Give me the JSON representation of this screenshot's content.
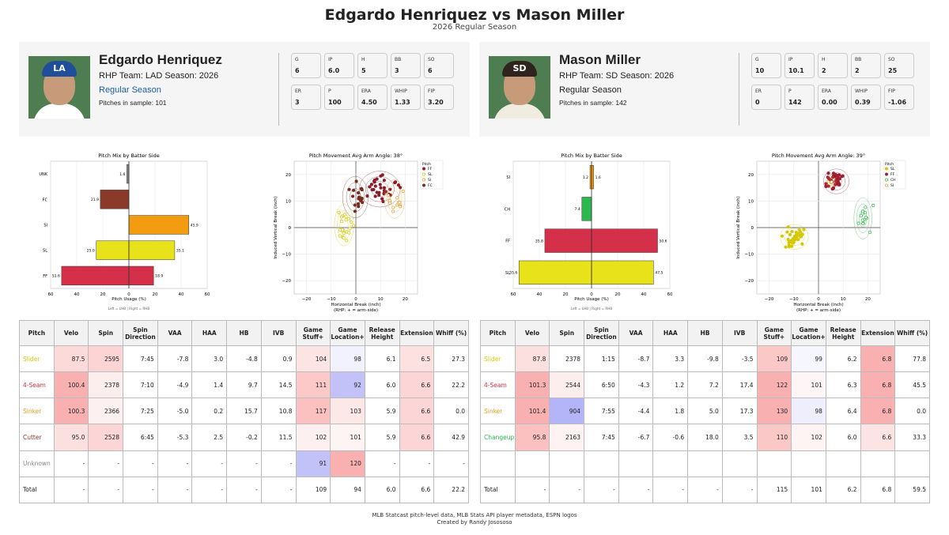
{
  "title": "Edgardo Henriquez vs Mason Miller",
  "subtitle": "2026 Regular Season",
  "players": [
    {
      "name": "Edgardo Henriquez",
      "info": "RHP  Team: LAD  Season: 2026",
      "season_type": "Regular Season",
      "pitch_count_label": "Pitches in sample: 101",
      "team_abbr": "LA",
      "team_color": "#1f4e9a",
      "body_color": "#ffffff",
      "stats": [
        {
          "label": "G",
          "value": "6"
        },
        {
          "label": "IP",
          "value": "6.0"
        },
        {
          "label": "H",
          "value": "5"
        },
        {
          "label": "BB",
          "value": "3"
        },
        {
          "label": "SO",
          "value": "6"
        },
        {
          "label": "ER",
          "value": "3"
        },
        {
          "label": "P",
          "value": "100"
        },
        {
          "label": "ERA",
          "value": "4.50"
        },
        {
          "label": "WHIP",
          "value": "1.33"
        },
        {
          "label": "FIP",
          "value": "3.20"
        }
      ]
    },
    {
      "name": "Mason Miller",
      "info": "RHP  Team: SD  Season: 2026",
      "season_type": "Regular Season",
      "pitch_count_label": "Pitches in sample: 142",
      "team_abbr": "SD",
      "team_color": "#2f241d",
      "body_color": "#f0ece0",
      "stats": [
        {
          "label": "G",
          "value": "10"
        },
        {
          "label": "IP",
          "value": "10.1"
        },
        {
          "label": "H",
          "value": "2"
        },
        {
          "label": "BB",
          "value": "2"
        },
        {
          "label": "SO",
          "value": "25"
        },
        {
          "label": "ER",
          "value": "0"
        },
        {
          "label": "P",
          "value": "142"
        },
        {
          "label": "ERA",
          "value": "0.00"
        },
        {
          "label": "WHIP",
          "value": "0.39"
        },
        {
          "label": "FIP",
          "value": "-1.06"
        }
      ]
    }
  ],
  "chart_data": [
    {
      "type": "bar",
      "title": "Pitch Mix by Batter Side",
      "xlabel": "Pitch Usage (%)",
      "note": "Left = LHB  |  Right = RHB",
      "xlim": [
        -60,
        60
      ],
      "xticks": [
        "60",
        "40",
        "20",
        "0",
        "20",
        "40",
        "60"
      ],
      "categories": [
        "UNK",
        "FC",
        "SI",
        "SL",
        "FF"
      ],
      "colors": [
        "#888888",
        "#8b3a2a",
        "#f39c12",
        "#e8e21a",
        "#d4304a"
      ],
      "series": [
        {
          "name": "LHB",
          "values": [
            1.6,
            21.9,
            0,
            25.0,
            51.6
          ]
        },
        {
          "name": "RHB",
          "values": [
            0,
            0,
            45.9,
            35.1,
            18.9
          ]
        }
      ]
    },
    {
      "type": "scatter",
      "title": "Pitch Movement  Avg Arm Angle: 38°",
      "xlabel": "Horizontal Break (inch)",
      "xlabel2": "(RHP: + = arm-side)",
      "ylabel": "Induced Vertical Break (inch)",
      "xlim": [
        -25,
        25
      ],
      "ylim": [
        -25,
        25
      ],
      "xticks": [
        "−20",
        "−10",
        "0",
        "10",
        "20"
      ],
      "yticks": [
        "20",
        "10",
        "0",
        "−10",
        "−20"
      ],
      "legend_title": "Pitch",
      "series": [
        {
          "name": "FF",
          "color": "#8b1a2a",
          "cx": 9.7,
          "cy": 14.5,
          "sx": 3.2,
          "sy": 2.6,
          "n": 32,
          "fill": true
        },
        {
          "name": "SL",
          "color": "#d4c800",
          "cx": -4.8,
          "cy": 0.9,
          "sx": 1.5,
          "sy": 3,
          "n": 22,
          "fill": false
        },
        {
          "name": "SI",
          "color": "#e8a020",
          "cx": 15.7,
          "cy": 10.8,
          "sx": 1.6,
          "sy": 2.8,
          "n": 14,
          "fill": false
        },
        {
          "name": "FC",
          "color": "#7a2a1a",
          "cx": -0.2,
          "cy": 11.5,
          "sx": 2,
          "sy": 3,
          "n": 18,
          "fill": true
        }
      ]
    },
    {
      "type": "bar",
      "title": "Pitch Mix by Batter Side",
      "xlabel": "Pitch Usage (%)",
      "note": "Left = LHB  |  Right = RHB",
      "xlim": [
        -60,
        60
      ],
      "xticks": [
        "60",
        "40",
        "20",
        "0",
        "20",
        "40",
        "60"
      ],
      "categories": [
        "SI",
        "CH",
        "FF",
        "SL"
      ],
      "colors": [
        "#f39c12",
        "#2db84d",
        "#d4304a",
        "#e8e21a"
      ],
      "series": [
        {
          "name": "LHB",
          "values": [
            1.2,
            7.4,
            35.8,
            55.6
          ]
        },
        {
          "name": "RHB",
          "values": [
            1.6,
            0,
            50.6,
            47.5
          ]
        }
      ]
    },
    {
      "type": "scatter",
      "title": "Pitch Movement  Avg Arm Angle: 39°",
      "xlabel": "Horizontal Break (inch)",
      "xlabel2": "(RHP: + = arm-side)",
      "ylabel": "Induced Vertical Break (inch)",
      "xlim": [
        -25,
        25
      ],
      "ylim": [
        -25,
        25
      ],
      "xticks": [
        "−20",
        "−10",
        "0",
        "10",
        "20"
      ],
      "yticks": [
        "20",
        "10",
        "0",
        "−10",
        "−20"
      ],
      "legend_title": "Pitch",
      "series": [
        {
          "name": "SL",
          "color": "#d4c800",
          "cx": -9.8,
          "cy": -3.5,
          "sx": 2.2,
          "sy": 1.8,
          "n": 40,
          "fill": true
        },
        {
          "name": "FF",
          "color": "#a01c30",
          "cx": 7.2,
          "cy": 17.4,
          "sx": 2,
          "sy": 1.8,
          "n": 38,
          "fill": true
        },
        {
          "name": "CH",
          "color": "#2db84d",
          "cx": 18.0,
          "cy": 3.5,
          "sx": 1.4,
          "sy": 3,
          "n": 14,
          "fill": false
        },
        {
          "name": "SI",
          "color": "#e8a020",
          "cx": 5.0,
          "cy": 17.3,
          "sx": 0.8,
          "sy": 0.8,
          "n": 2,
          "fill": false
        }
      ]
    }
  ],
  "tables": [
    {
      "headers": [
        "Pitch",
        "Velo",
        "Spin",
        "Spin Direction",
        "VAA",
        "HAA",
        "HB",
        "IVB",
        "Game Stuff+",
        "Game Location+",
        "Release Height",
        "Extension",
        "Whiff (%)"
      ],
      "rows": [
        {
          "name": "Slider",
          "color": "#d4c800",
          "cells": [
            "87.5",
            "2595",
            "7:45",
            "-7.8",
            "3.0",
            "-4.8",
            "0.9",
            "104",
            "98",
            "6.1",
            "6.5",
            "27.3"
          ],
          "bg": [
            "#fcdada",
            "#fcd4d4",
            "",
            "",
            "",
            "",
            "",
            "#fde4e4",
            "#f2f2fe",
            "",
            "#fde0e0",
            ""
          ]
        },
        {
          "name": "4-Seam",
          "color": "#d4304a",
          "cells": [
            "100.4",
            "2378",
            "7:10",
            "-4.9",
            "1.4",
            "9.7",
            "14.5",
            "111",
            "92",
            "6.0",
            "6.6",
            "22.2"
          ],
          "bg": [
            "#f9b0b0",
            "#fdeeee",
            "",
            "",
            "",
            "",
            "",
            "#fcc8c8",
            "#c2c2f8",
            "",
            "#fcd6d6",
            ""
          ]
        },
        {
          "name": "Sinker",
          "color": "#e8a020",
          "cells": [
            "100.3",
            "2366",
            "7:25",
            "-5.0",
            "0.2",
            "15.7",
            "10.8",
            "117",
            "103",
            "5.9",
            "6.6",
            "0.0"
          ],
          "bg": [
            "#f9b0b0",
            "#fdf0f0",
            "",
            "",
            "",
            "",
            "",
            "#fbc0c0",
            "#fde8e8",
            "",
            "#fcd6d6",
            ""
          ]
        },
        {
          "name": "Cutter",
          "color": "#8b3a2a",
          "cells": [
            "95.0",
            "2528",
            "6:45",
            "-5.3",
            "2.5",
            "-0.2",
            "11.5",
            "102",
            "101",
            "5.9",
            "6.6",
            "42.9"
          ],
          "bg": [
            "#fce0e0",
            "#fcd6d6",
            "",
            "",
            "",
            "",
            "",
            "#fdf0f0",
            "#fef4f4",
            "",
            "#fcd6d6",
            ""
          ]
        },
        {
          "name": "Unknown",
          "color": "#888888",
          "cells": [
            "-",
            "-",
            "-",
            "-",
            "-",
            "-",
            "-",
            "91",
            "120",
            "-",
            "-",
            "-"
          ],
          "bg": [
            "",
            "",
            "",
            "",
            "",
            "",
            "",
            "#c2c2f8",
            "#f9b0b0",
            "",
            "",
            ""
          ]
        },
        {
          "name": "Total",
          "color": "#222222",
          "cells": [
            "-",
            "-",
            "-",
            "-",
            "-",
            "-",
            "-",
            "109",
            "94",
            "6.0",
            "6.6",
            "22.2"
          ],
          "bg": [
            "",
            "",
            "",
            "",
            "",
            "",
            "",
            "",
            "",
            "",
            "",
            ""
          ]
        }
      ]
    },
    {
      "headers": [
        "Pitch",
        "Velo",
        "Spin",
        "Spin Direction",
        "VAA",
        "HAA",
        "HB",
        "IVB",
        "Game Stuff+",
        "Game Location+",
        "Release Height",
        "Extension",
        "Whiff (%)"
      ],
      "rows": [
        {
          "name": "Slider",
          "color": "#d4c800",
          "cells": [
            "87.8",
            "2378",
            "1:15",
            "-8.7",
            "3.3",
            "-9.8",
            "-3.5",
            "109",
            "99",
            "6.2",
            "6.8",
            "77.8"
          ],
          "bg": [
            "#fce0e0",
            "",
            "",
            "",
            "",
            "",
            "",
            "#fbc8c8",
            "#f6f6fe",
            "",
            "#f9b0b0",
            ""
          ]
        },
        {
          "name": "4-Seam",
          "color": "#d4304a",
          "cells": [
            "101.3",
            "2544",
            "6:50",
            "-4.3",
            "1.2",
            "7.2",
            "17.4",
            "122",
            "101",
            "6.3",
            "6.8",
            "45.5"
          ],
          "bg": [
            "#f9b0b0",
            "#fdeeee",
            "",
            "",
            "",
            "",
            "",
            "#f9b0b0",
            "#fef6f6",
            "",
            "#f9b0b0",
            ""
          ]
        },
        {
          "name": "Sinker",
          "color": "#e8a020",
          "cells": [
            "101.4",
            "904",
            "7:55",
            "-4.4",
            "1.8",
            "5.0",
            "17.3",
            "130",
            "98",
            "6.4",
            "6.8",
            "0.0"
          ],
          "bg": [
            "#f9b0b0",
            "#b4b4f8",
            "",
            "",
            "",
            "",
            "",
            "#f9b0b0",
            "#eeeefd",
            "",
            "#f9b0b0",
            ""
          ]
        },
        {
          "name": "Changeup",
          "color": "#2db84d",
          "cells": [
            "95.8",
            "2163",
            "7:45",
            "-6.7",
            "-0.6",
            "18.0",
            "3.5",
            "110",
            "102",
            "6.0",
            "6.6",
            "33.3"
          ],
          "bg": [
            "#fbc0c0",
            "#fef2f2",
            "",
            "",
            "",
            "",
            "",
            "#fbc8c8",
            "#fef4f4",
            "",
            "#fde4e4",
            ""
          ]
        },
        {
          "name": "",
          "color": "#222222",
          "cells": [
            "",
            "",
            "",
            "",
            "",
            "",
            "",
            "",
            "",
            "",
            "",
            ""
          ],
          "bg": [
            "",
            "",
            "",
            "",
            "",
            "",
            "",
            "",
            "",
            "",
            "",
            ""
          ]
        },
        {
          "name": "Total",
          "color": "#222222",
          "cells": [
            "-",
            "-",
            "-",
            "-",
            "-",
            "-",
            "-",
            "115",
            "101",
            "6.2",
            "6.8",
            "59.5"
          ],
          "bg": [
            "",
            "",
            "",
            "",
            "",
            "",
            "",
            "",
            "",
            "",
            "",
            ""
          ]
        }
      ]
    }
  ],
  "footer": {
    "line1": "MLB Statcast pitch-level data, MLB Stats API player metadata, ESPN logos",
    "line2": "Created by Randy Josososo"
  }
}
